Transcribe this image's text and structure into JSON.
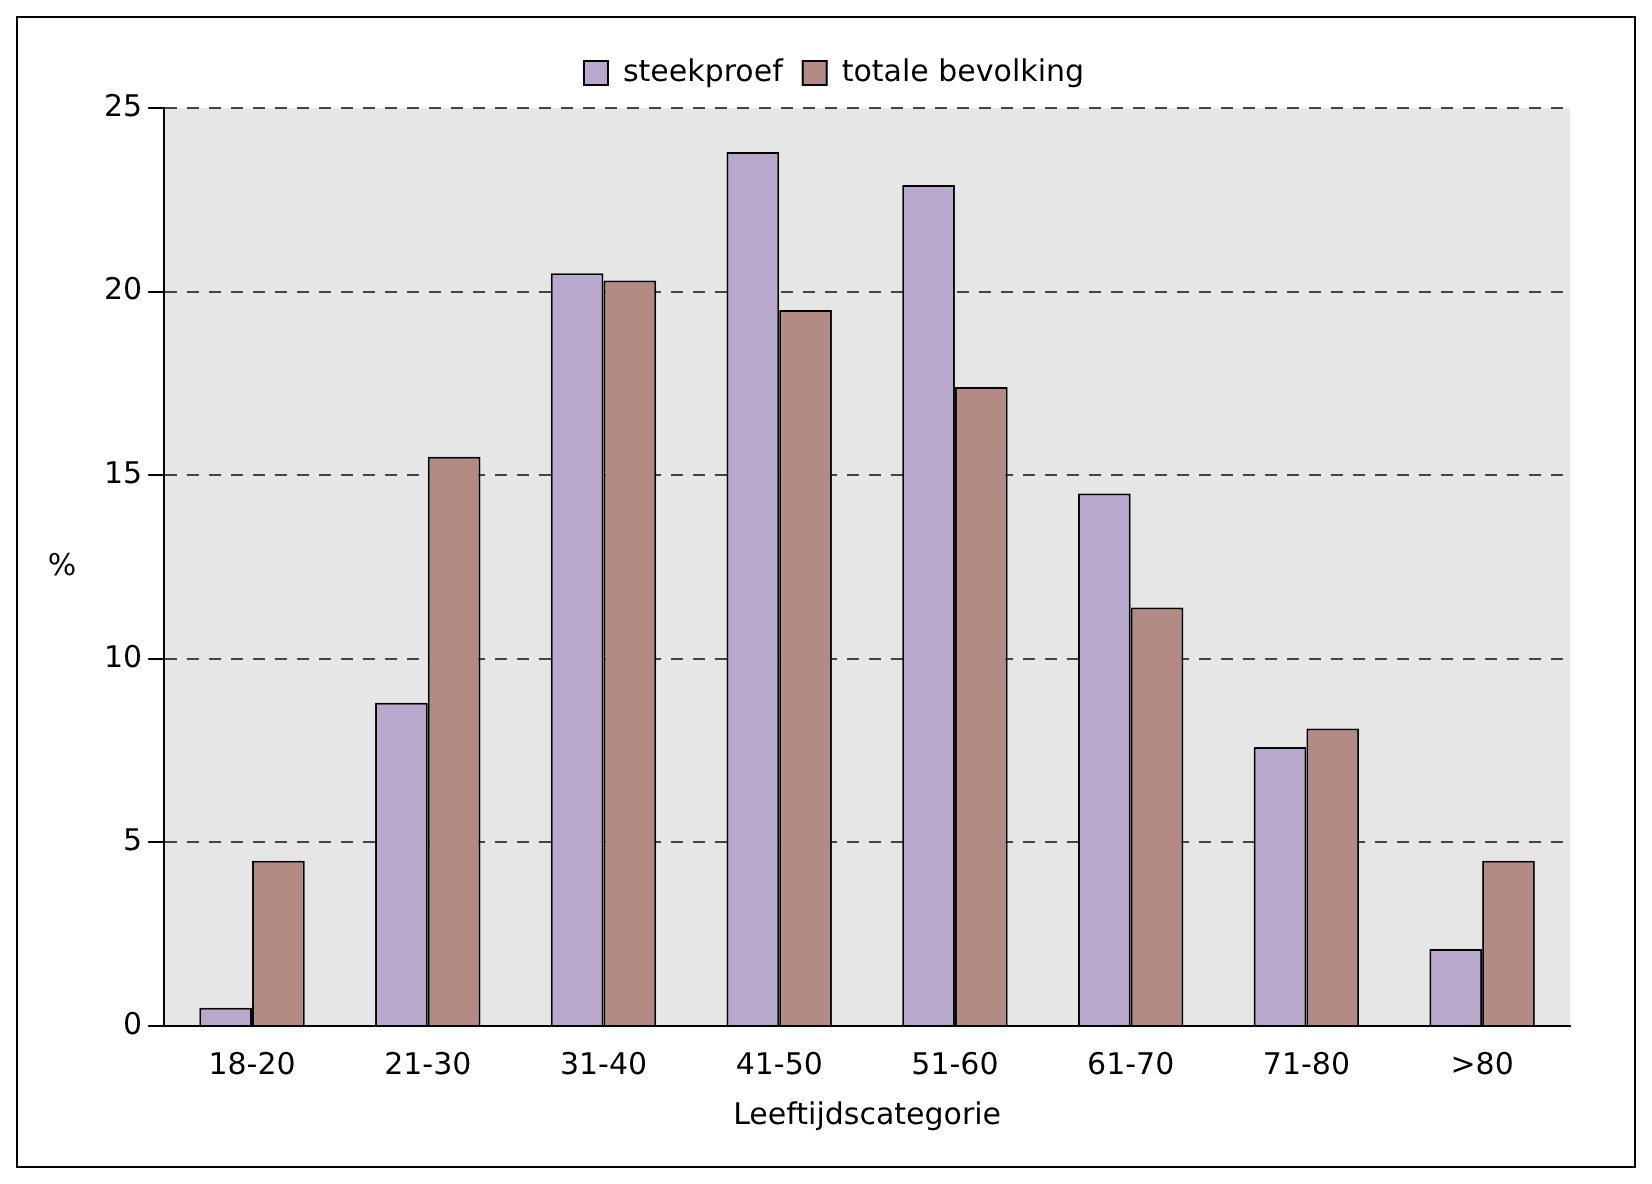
{
  "chart_data": {
    "type": "bar",
    "xlabel": "Leeftijdscategorie",
    "ylabel": "%",
    "categories": [
      "18-20",
      "21-30",
      "31-40",
      "41-50",
      "51-60",
      "61-70",
      "71-80",
      ">80"
    ],
    "series": [
      {
        "name": "steekproef",
        "color": "#b8a9cc",
        "values": [
          0.5,
          8.8,
          20.5,
          23.8,
          22.9,
          14.5,
          7.6,
          2.1
        ]
      },
      {
        "name": "totale bevolking",
        "color": "#b48b84",
        "values": [
          4.5,
          15.5,
          20.3,
          19.5,
          17.4,
          11.4,
          8.1,
          4.5
        ]
      }
    ],
    "ylim": [
      0,
      25
    ],
    "yticks": [
      0,
      5,
      10,
      15,
      20,
      25
    ],
    "grid": "y",
    "legend": "top"
  }
}
